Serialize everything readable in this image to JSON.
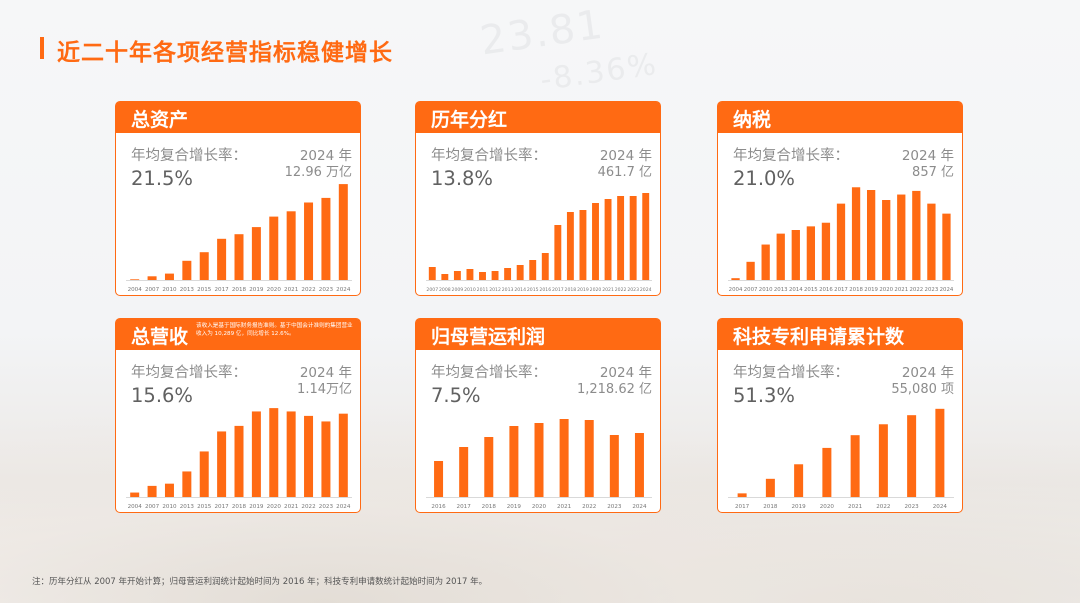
{
  "page": {
    "title": "近二十年各项经营指标稳健增长",
    "footnote": "注：历年分红从 2007 年开始计算；归母营运利润统计起始时间为 2016 年；科技专利申请数统计起始时间为 2017 年。",
    "accent_color": "#ff6a13",
    "bg_ghost_a": "23.81",
    "bg_ghost_b": "-8.36%"
  },
  "cards": [
    {
      "title": "总资产",
      "note": "",
      "cagr_label": "年均复合增长率：",
      "cagr_value": "21.5%",
      "year_label": "2024 年",
      "year_value": "12.96 万亿"
    },
    {
      "title": "历年分红",
      "note": "",
      "cagr_label": "年均复合增长率：",
      "cagr_value": "13.8%",
      "year_label": "2024 年",
      "year_value": "461.7 亿"
    },
    {
      "title": "纳税",
      "note": "",
      "cagr_label": "年均复合增长率：",
      "cagr_value": "21.0%",
      "year_label": "2024 年",
      "year_value": "857 亿"
    },
    {
      "title": "总营收",
      "note": "该收入是基于国际财务报告准则。基于中国会计准则的集团营业收入为 10,289 亿，同比增长 12.6%。",
      "cagr_label": "年均复合增长率：",
      "cagr_value": "15.6%",
      "year_label": "2024 年",
      "year_value": "1.14万亿"
    },
    {
      "title": "归母营运利润",
      "note": "",
      "cagr_label": "年均复合增长率：",
      "cagr_value": "7.5%",
      "year_label": "2024 年",
      "year_value": "1,218.62 亿"
    },
    {
      "title": "科技专利申请累计数",
      "note": "",
      "cagr_label": "年均复合增长率：",
      "cagr_value": "51.3%",
      "year_label": "2024 年",
      "year_value": "55,080 项"
    }
  ],
  "chart_data": [
    {
      "type": "bar",
      "title": "总资产",
      "categories": [
        "2004",
        "2007",
        "2010",
        "2013",
        "2015",
        "2017",
        "2018",
        "2019",
        "2020",
        "2021",
        "2022",
        "2023",
        "2024"
      ],
      "values": [
        0.07,
        0.37,
        0.64,
        1.92,
        2.78,
        4.12,
        4.58,
        5.29,
        6.34,
        6.87,
        7.75,
        8.21,
        9.59
      ],
      "ylim": [
        0,
        10
      ]
    },
    {
      "type": "bar",
      "title": "历年分红",
      "categories": [
        "2007",
        "2008",
        "2009",
        "2010",
        "2011",
        "2012",
        "2013",
        "2014",
        "2015",
        "2016",
        "2017",
        "2018",
        "2019",
        "2020",
        "2021",
        "2022",
        "2023",
        "2024"
      ],
      "values": [
        1.3,
        0.6,
        0.9,
        1.1,
        0.8,
        0.9,
        1.2,
        1.5,
        2.0,
        2.7,
        5.5,
        6.8,
        7.0,
        7.7,
        8.1,
        8.4,
        8.4,
        8.7
      ],
      "ylim": [
        0,
        10
      ]
    },
    {
      "type": "bar",
      "title": "纳税",
      "categories": [
        "2004",
        "2007",
        "2010",
        "2013",
        "2014",
        "2015",
        "2016",
        "2017",
        "2018",
        "2019",
        "2020",
        "2021",
        "2022",
        "2023",
        "2024"
      ],
      "values": [
        0.2,
        2.0,
        3.9,
        5.1,
        5.5,
        5.9,
        6.3,
        8.4,
        10.2,
        9.9,
        8.8,
        9.4,
        9.8,
        8.4,
        7.3
      ],
      "ylim": [
        0,
        11
      ]
    },
    {
      "type": "bar",
      "title": "总营收",
      "categories": [
        "2004",
        "2007",
        "2010",
        "2013",
        "2015",
        "2017",
        "2018",
        "2019",
        "2020",
        "2021",
        "2022",
        "2023",
        "2024"
      ],
      "values": [
        0.4,
        1.0,
        1.2,
        2.3,
        4.1,
        5.9,
        6.4,
        7.7,
        8.0,
        7.7,
        7.3,
        6.8,
        7.5
      ],
      "ylim": [
        0,
        9
      ]
    },
    {
      "type": "bar",
      "title": "归母营运利润",
      "categories": [
        "2016",
        "2017",
        "2018",
        "2019",
        "2020",
        "2021",
        "2022",
        "2023",
        "2024"
      ],
      "values": [
        3.6,
        5.0,
        6.0,
        7.1,
        7.4,
        7.8,
        7.7,
        6.2,
        6.4
      ],
      "ylim": [
        0,
        10
      ]
    },
    {
      "type": "bar",
      "title": "科技专利申请累计数",
      "categories": [
        "2017",
        "2018",
        "2019",
        "2020",
        "2021",
        "2022",
        "2023",
        "2024"
      ],
      "values": [
        0.4,
        2.0,
        3.6,
        5.4,
        6.8,
        8.0,
        9.0,
        9.7
      ],
      "ylim": [
        0,
        11
      ]
    }
  ]
}
